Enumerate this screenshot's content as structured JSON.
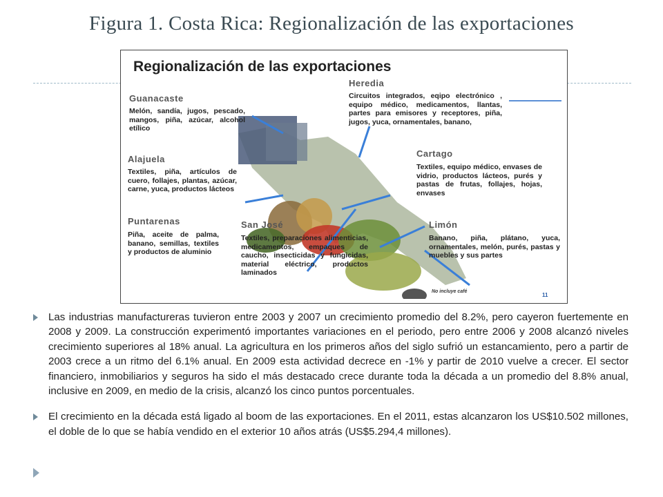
{
  "slide": {
    "title": "Figura 1. Costa Rica: Regionalización de las exportaciones"
  },
  "figure": {
    "title": "Regionalización de las exportaciones",
    "note": "No incluye café",
    "page_number": "11",
    "regions": {
      "guanacaste": {
        "name": "Guanacaste",
        "text": "Melón, sandía, jugos, pescado, mangos, piña, azúcar, alcohol etílico"
      },
      "heredia": {
        "name": "Heredia",
        "text": "Circuitos integrados, eqipo electrónico , equipo médico, medicamentos, llantas, partes para emisores y receptores, piña, jugos, yuca, ornamentales, banano,"
      },
      "alajuela": {
        "name": "Alajuela",
        "text": "Textiles, piña, artículos de cuero, follajes, plantas, azúcar, carne, yuca, productos lácteos"
      },
      "cartago": {
        "name": "Cartago",
        "text": "Textiles, equipo médico, envases de vidrio, productos lácteos, purés y pastas de frutas, follajes, hojas, envases"
      },
      "puntarenas": {
        "name": "Puntarenas",
        "text": "Piña, aceite de palma, banano, semillas, textiles y productos de aluminio"
      },
      "san_jose": {
        "name": "San José",
        "text": "Textiles, preparaciones alimenticias, medicamentos, empaques de caucho, insecticidas y fungicidas, material eléctrico, productos laminados"
      },
      "limon": {
        "name": "Limón",
        "text": "Banano, piña, plátano, yuca, ornamentales, melón, purés, pastas y muebles y sus partes"
      }
    }
  },
  "bullets": [
    "Las  industrias manufactureras tuvieron entre 2003 y 2007 un crecimiento promedio del 8.2%, pero cayeron fuertemente en 2008 y 2009.  La  construcción experimentó  importantes variaciones en el periodo, pero entre 2006 y 2008 alcanzó niveles crecimiento superiores al 18% anual.  La  agricultura en los primeros años del siglo sufrió un estancamiento, pero a partir de 2003 crece a un ritmo del 6.1% anual.  En 2009 esta actividad decrece en -1% y partir de 2010 vuelve a crecer.  El sector financiero, inmobiliarios y seguros ha sido el más destacado crece durante toda la década  a un promedio del 8.8% anual, inclusive en 2009, en medio de la crisis, alcanzó los cinco puntos porcentuales.",
    " El crecimiento en la  década  está ligado al boom de las  exportaciones. En el 2011, estas alcanzaron los US$10.502 millones, el doble de lo que se había vendido en el exterior 10 años atrás (US$5.294,4 millones)."
  ],
  "colors": {
    "accent": "#5b8fd6",
    "arrow": "#3a7fd8",
    "title": "#3a4a52"
  }
}
